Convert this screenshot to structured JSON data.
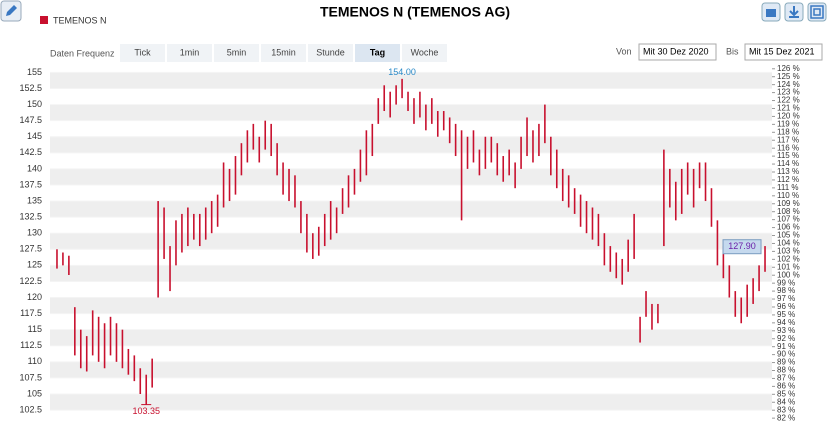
{
  "chart_data": {
    "type": "hilo",
    "title": "TEMENOS N (TEMENOS AG)",
    "frequency_label": "Daten Frequenz",
    "frequencies": [
      "Tick",
      "1min",
      "5min",
      "15min",
      "Stunde",
      "Tag",
      "Woche"
    ],
    "active_frequency": "Tag",
    "from_label": "Von",
    "from_date": "Mit 30 Dez 2020",
    "to_label": "Bis",
    "to_date": "Mit 15 Dez 2021",
    "series": [
      {
        "name": "TEMENOS N",
        "color": "#c8102e",
        "low": [
          124.5,
          125,
          123.5,
          111,
          109,
          108.5,
          111,
          110,
          109,
          111,
          110,
          109,
          108,
          107,
          105,
          103.35,
          106,
          120,
          126,
          121,
          125,
          127,
          128,
          129,
          128,
          129,
          130,
          131,
          134,
          135,
          136,
          139,
          141,
          143,
          141,
          143,
          142,
          139,
          136,
          135,
          134,
          130,
          127,
          126,
          126.5,
          128,
          129,
          130,
          133,
          134,
          136,
          138,
          139,
          142,
          147,
          149,
          148,
          150,
          151,
          149,
          147,
          148,
          146,
          147,
          145,
          146,
          144,
          142,
          132,
          140,
          141,
          139,
          140,
          141,
          139,
          138,
          139,
          137,
          140,
          142,
          141,
          142,
          144,
          139,
          137,
          135,
          134,
          133,
          131,
          130,
          129,
          128,
          125,
          124,
          123,
          122,
          124,
          126,
          113,
          117,
          115,
          116,
          128,
          134,
          132,
          133,
          136,
          134,
          137,
          135,
          131,
          125,
          123,
          120,
          117,
          116,
          117,
          119,
          121,
          124
        ],
        "high": [
          127.5,
          127,
          126.5,
          118.5,
          115,
          114,
          118,
          117,
          116,
          117,
          116,
          115,
          112,
          111,
          109,
          108,
          110.5,
          135,
          134,
          128,
          132,
          133,
          134,
          133,
          133,
          134,
          135,
          136,
          141,
          140,
          142,
          144,
          146,
          147,
          145,
          147.5,
          147,
          144,
          141,
          140,
          139,
          135,
          133,
          130,
          131,
          133,
          135,
          134,
          137,
          139,
          140,
          143,
          146,
          147,
          151,
          153,
          152,
          153,
          154,
          152,
          151,
          152,
          150,
          151,
          149,
          149,
          148,
          147,
          146,
          145,
          146,
          143,
          145,
          145,
          144,
          142,
          143,
          141,
          145,
          148,
          146,
          147,
          150,
          145,
          143,
          140,
          139,
          137,
          136,
          135,
          134,
          133,
          130,
          128,
          127,
          126,
          129,
          133,
          117,
          121,
          119,
          119,
          143,
          140,
          138,
          140,
          141,
          140,
          141,
          141,
          137,
          132,
          128,
          125,
          121,
          120,
          122,
          123,
          125,
          128
        ]
      }
    ],
    "annotations": [
      {
        "value": 154,
        "label": "154.00"
      },
      {
        "value": 103.35,
        "label": "103.35"
      },
      {
        "value": 127.9,
        "label": "127.90"
      }
    ],
    "ylim": [
      100.8,
      156
    ],
    "yticks": [
      102.5,
      105,
      107.5,
      110,
      112.5,
      115,
      117.5,
      120,
      122.5,
      125,
      127.5,
      130,
      132.5,
      135,
      137.5,
      140,
      142.5,
      145,
      147.5,
      150,
      152.5,
      155
    ],
    "y2lim": [
      81.64,
      126.35
    ],
    "y2ticks": [
      {
        "value": 82,
        "label": "82 %"
      },
      {
        "value": 83,
        "label": "83 %"
      },
      {
        "value": 84,
        "label": "84 %"
      },
      {
        "value": 85,
        "label": "85 %"
      },
      {
        "value": 86,
        "label": "86 %"
      },
      {
        "value": 87,
        "label": "87 %"
      },
      {
        "value": 88,
        "label": "88 %"
      },
      {
        "value": 89,
        "label": "89 %"
      },
      {
        "value": 90,
        "label": "90 %"
      },
      {
        "value": 91,
        "label": "91 %"
      },
      {
        "value": 92,
        "label": "92 %"
      },
      {
        "value": 93,
        "label": "93 %"
      },
      {
        "value": 94,
        "label": "94 %"
      },
      {
        "value": 95,
        "label": "95 %"
      },
      {
        "value": 96,
        "label": "96 %"
      },
      {
        "value": 97,
        "label": "97 %"
      },
      {
        "value": 98,
        "label": "98 %"
      },
      {
        "value": 99,
        "label": "99 %"
      },
      {
        "value": 100,
        "label": "100 %"
      },
      {
        "value": 101,
        "label": "101 %"
      },
      {
        "value": 102,
        "label": "102 %"
      },
      {
        "value": 103,
        "label": "103 %"
      },
      {
        "value": 104,
        "label": "104 %"
      },
      {
        "value": 105,
        "label": "105 %"
      },
      {
        "value": 106,
        "label": "106 %"
      },
      {
        "value": 107,
        "label": "107 %"
      },
      {
        "value": 108,
        "label": "108 %"
      },
      {
        "value": 109,
        "label": "109 %"
      },
      {
        "value": 110,
        "label": "110 %"
      },
      {
        "value": 111,
        "label": "111 %"
      },
      {
        "value": 112,
        "label": "112 %"
      },
      {
        "value": 113,
        "label": "113 %"
      },
      {
        "value": 114,
        "label": "114 %"
      },
      {
        "value": 115,
        "label": "115 %"
      },
      {
        "value": 116,
        "label": "116 %"
      },
      {
        "value": 117,
        "label": "117 %"
      },
      {
        "value": 118,
        "label": "118 %"
      },
      {
        "value": 119,
        "label": "119 %"
      },
      {
        "value": 120,
        "label": "120 %"
      },
      {
        "value": 121,
        "label": "121 %"
      },
      {
        "value": 122,
        "label": "122 %"
      },
      {
        "value": 123,
        "label": "123 %"
      },
      {
        "value": 124,
        "label": "124 %"
      },
      {
        "value": 125,
        "label": "125 %"
      },
      {
        "value": 126,
        "label": "126 %"
      }
    ],
    "grid": true
  }
}
